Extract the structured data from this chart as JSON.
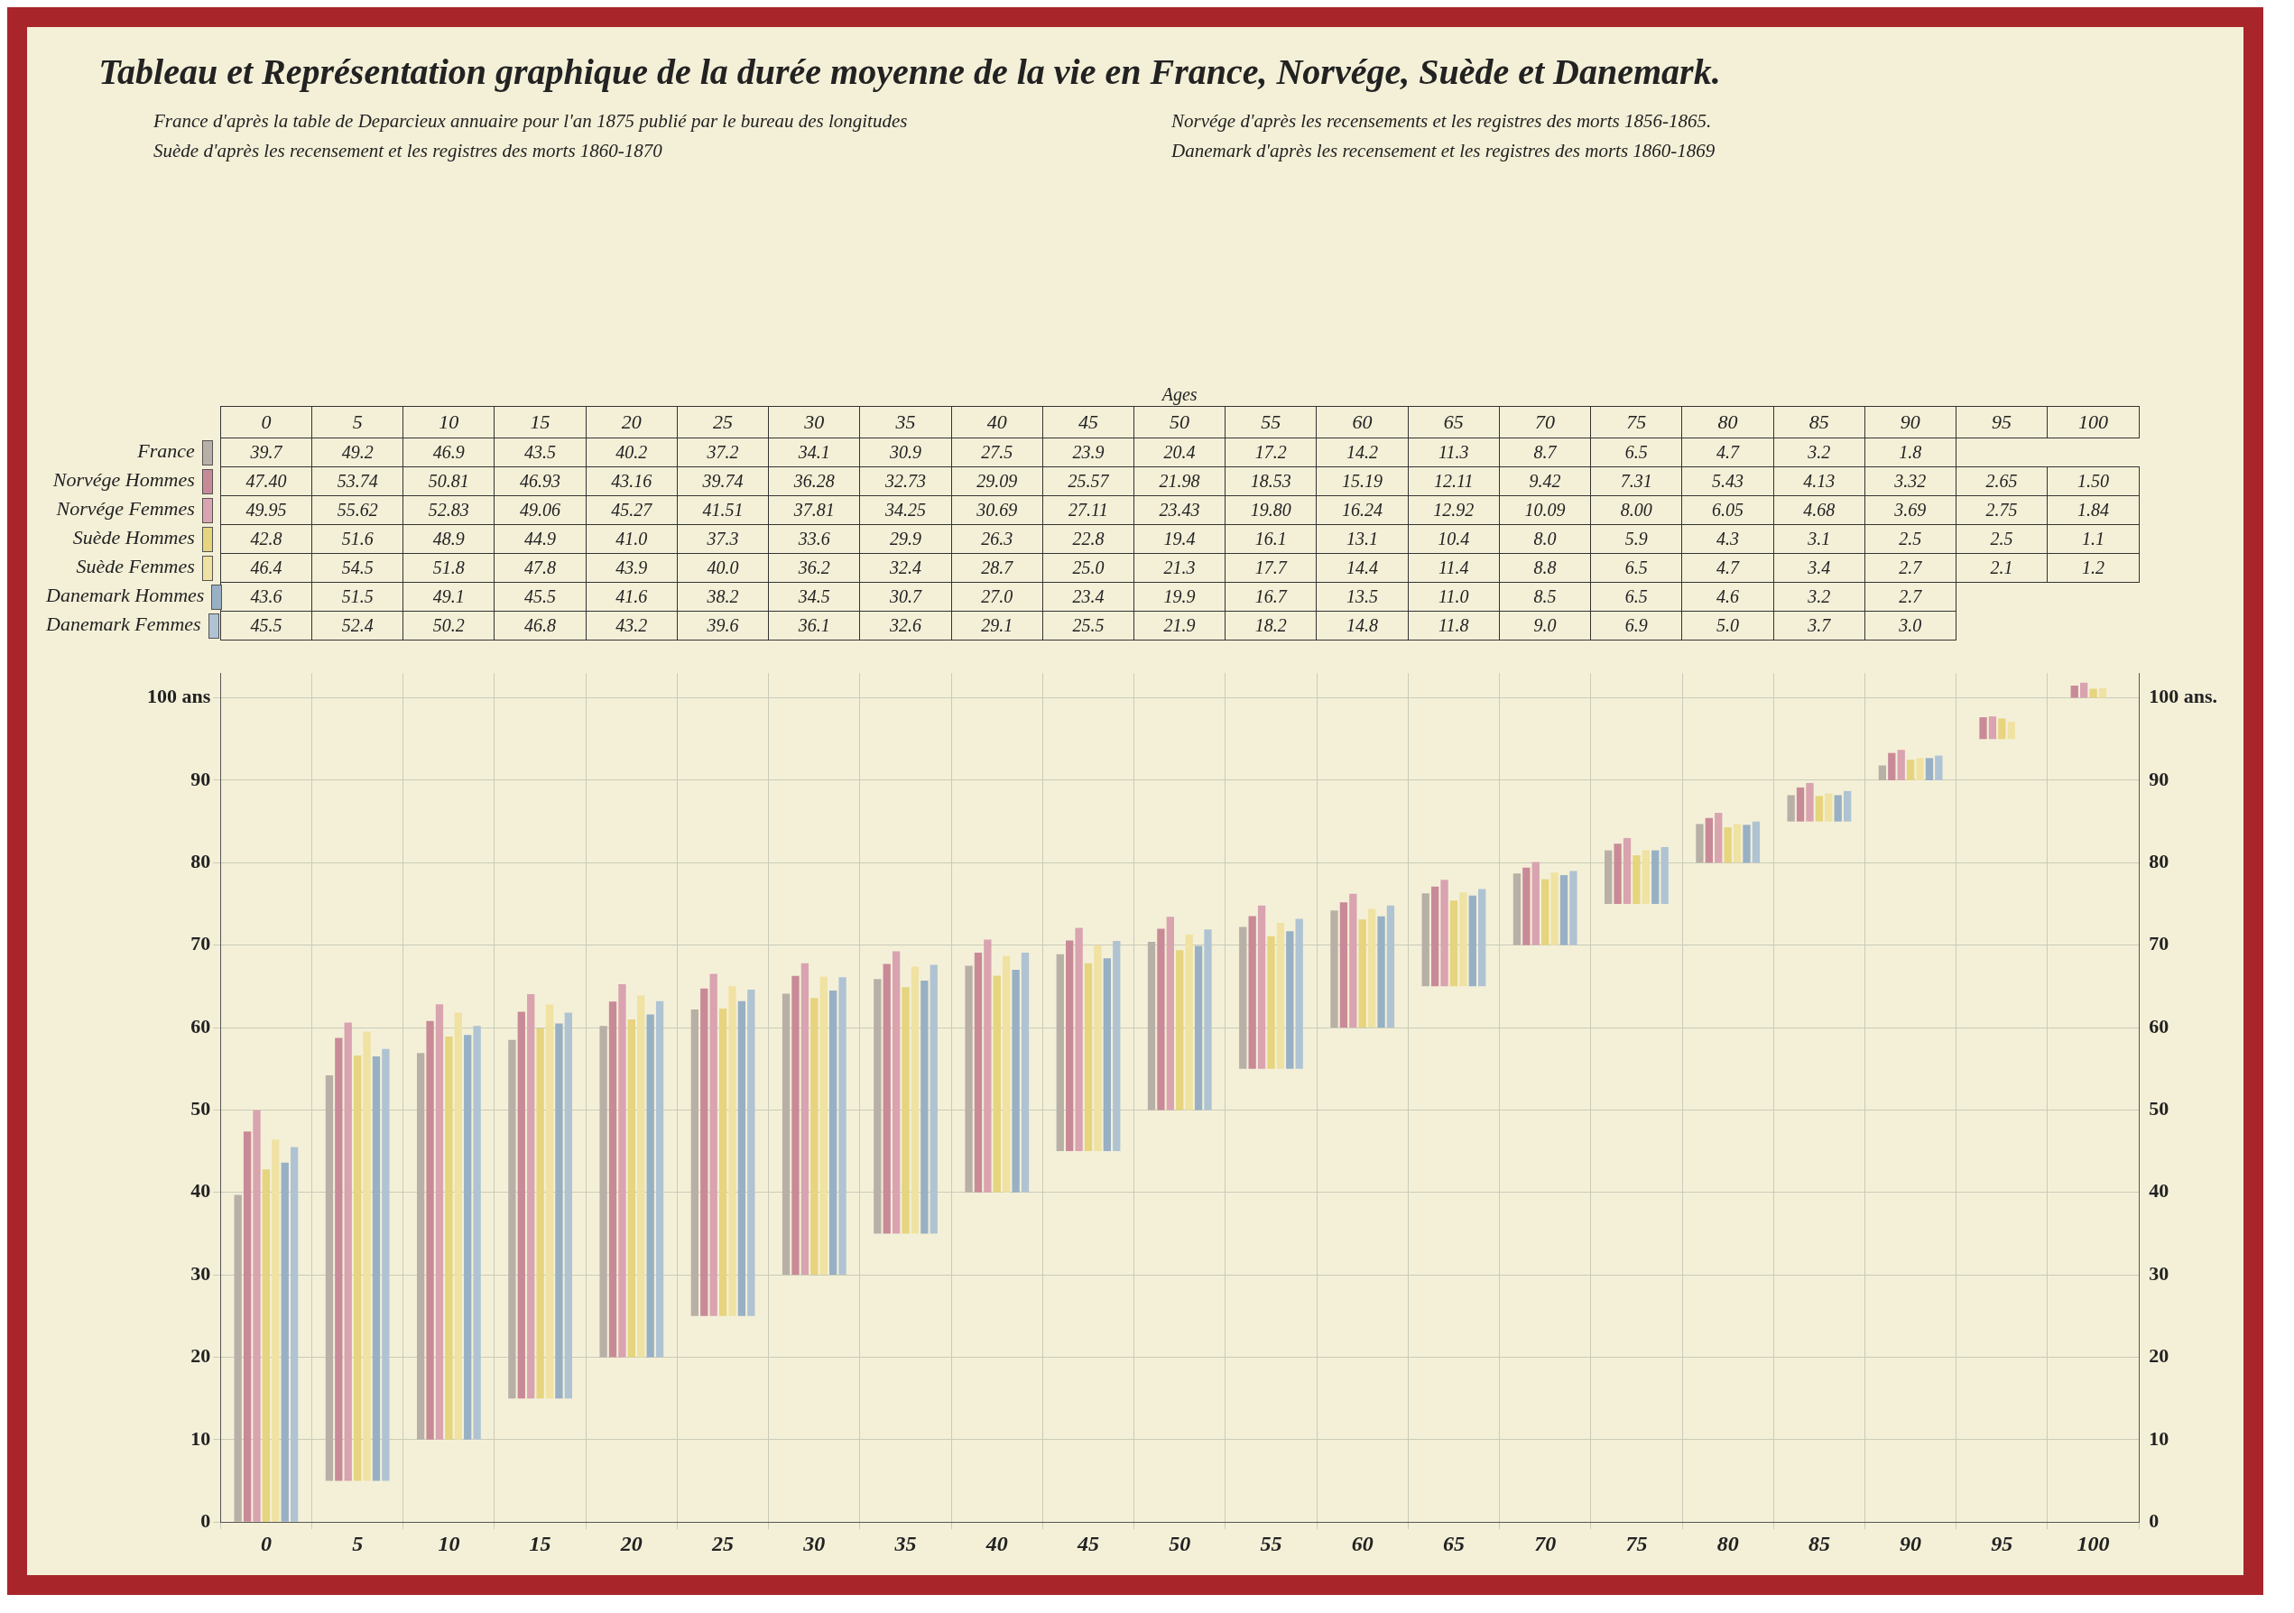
{
  "chart_data": {
    "type": "bar",
    "title": "Tableau et Représentation graphique de la durée moyenne de la vie en France, Norvége, Suède et Danemark.",
    "categories": [
      "0",
      "5",
      "10",
      "15",
      "20",
      "25",
      "30",
      "35",
      "40",
      "45",
      "50",
      "55",
      "60",
      "65",
      "70",
      "75",
      "80",
      "85",
      "90",
      "95",
      "100"
    ],
    "legend": "top",
    "series": [
      {
        "name": "France",
        "color": "#b8b0a6",
        "base": [
          0,
          5,
          10,
          15,
          20,
          25,
          30,
          35,
          40,
          45,
          50,
          55,
          60,
          65,
          70,
          75,
          80,
          85,
          90,
          null,
          null
        ],
        "values": [
          39.7,
          49.2,
          46.9,
          43.5,
          40.2,
          37.2,
          34.1,
          30.9,
          27.5,
          23.9,
          20.4,
          17.2,
          14.2,
          11.3,
          8.7,
          6.5,
          4.7,
          3.2,
          1.8,
          null,
          null
        ],
        "value_labels": [
          "39.7",
          "49.2",
          "46.9",
          "43.5",
          "40.2",
          "37.2",
          "34.1",
          "30.9",
          "27.5",
          "23.9",
          "20.4",
          "17.2",
          "14.2",
          "11.3",
          "8.7",
          "6.5",
          "4.7",
          "3.2",
          "1.8",
          null,
          null
        ]
      },
      {
        "name": "Norvége Hommes",
        "color": "#c98a98",
        "base": [
          0,
          5,
          10,
          15,
          20,
          25,
          30,
          35,
          40,
          45,
          50,
          55,
          60,
          65,
          70,
          75,
          80,
          85,
          90,
          95,
          100
        ],
        "values": [
          47.4,
          53.74,
          50.81,
          46.93,
          43.16,
          39.74,
          36.28,
          32.73,
          29.09,
          25.57,
          21.98,
          18.53,
          15.19,
          12.11,
          9.42,
          7.31,
          5.43,
          4.13,
          3.32,
          2.65,
          1.5
        ],
        "value_labels": [
          "47.40",
          "53.74",
          "50.81",
          "46.93",
          "43.16",
          "39.74",
          "36.28",
          "32.73",
          "29.09",
          "25.57",
          "21.98",
          "18.53",
          "15.19",
          "12.11",
          "9.42",
          "7.31",
          "5.43",
          "4.13",
          "3.32",
          "2.65",
          "1.50"
        ]
      },
      {
        "name": "Norvége Femmes",
        "color": "#d9a3b0",
        "base": [
          0,
          5,
          10,
          15,
          20,
          25,
          30,
          35,
          40,
          45,
          50,
          55,
          60,
          65,
          70,
          75,
          80,
          85,
          90,
          95,
          100
        ],
        "values": [
          49.95,
          55.62,
          52.83,
          49.06,
          45.27,
          41.51,
          37.81,
          34.25,
          30.69,
          27.11,
          23.43,
          19.8,
          16.24,
          12.92,
          10.09,
          8.0,
          6.05,
          4.68,
          3.69,
          2.75,
          1.84
        ],
        "value_labels": [
          "49.95",
          "55.62",
          "52.83",
          "49.06",
          "45.27",
          "41.51",
          "37.81",
          "34.25",
          "30.69",
          "27.11",
          "23.43",
          "19.80",
          "16.24",
          "12.92",
          "10.09",
          "8.00",
          "6.05",
          "4.68",
          "3.69",
          "2.75",
          "1.84"
        ]
      },
      {
        "name": "Suède Hommes",
        "color": "#e6d47e",
        "base": [
          0,
          5,
          10,
          15,
          20,
          25,
          30,
          35,
          40,
          45,
          50,
          55,
          60,
          65,
          70,
          75,
          80,
          85,
          90,
          95,
          100
        ],
        "values": [
          42.8,
          51.6,
          48.9,
          44.9,
          41.0,
          37.3,
          33.6,
          29.9,
          26.3,
          22.8,
          19.4,
          16.1,
          13.1,
          10.4,
          8.0,
          5.9,
          4.3,
          3.1,
          2.5,
          2.5,
          1.1
        ],
        "value_labels": [
          "42.8",
          "51.6",
          "48.9",
          "44.9",
          "41.0",
          "37.3",
          "33.6",
          "29.9",
          "26.3",
          "22.8",
          "19.4",
          "16.1",
          "13.1",
          "10.4",
          "8.0",
          "5.9",
          "4.3",
          "3.1",
          "2.5",
          "2.5",
          "1.1"
        ]
      },
      {
        "name": "Suède Femmes",
        "color": "#efe2a2",
        "base": [
          0,
          5,
          10,
          15,
          20,
          25,
          30,
          35,
          40,
          45,
          50,
          55,
          60,
          65,
          70,
          75,
          80,
          85,
          90,
          95,
          100
        ],
        "values": [
          46.4,
          54.5,
          51.8,
          47.8,
          43.9,
          40.0,
          36.2,
          32.4,
          28.7,
          25.0,
          21.3,
          17.7,
          14.4,
          11.4,
          8.8,
          6.5,
          4.7,
          3.4,
          2.7,
          2.1,
          1.2
        ],
        "value_labels": [
          "46.4",
          "54.5",
          "51.8",
          "47.8",
          "43.9",
          "40.0",
          "36.2",
          "32.4",
          "28.7",
          "25.0",
          "21.3",
          "17.7",
          "14.4",
          "11.4",
          "8.8",
          "6.5",
          "4.7",
          "3.4",
          "2.7",
          "2.1",
          "1.2"
        ]
      },
      {
        "name": "Danemark Hommes",
        "color": "#98b0c4",
        "base": [
          0,
          5,
          10,
          15,
          20,
          25,
          30,
          35,
          40,
          45,
          50,
          55,
          60,
          65,
          70,
          75,
          80,
          85,
          90,
          null,
          null
        ],
        "values": [
          43.6,
          51.5,
          49.1,
          45.5,
          41.6,
          38.2,
          34.5,
          30.7,
          27.0,
          23.4,
          19.9,
          16.7,
          13.5,
          11.0,
          8.5,
          6.5,
          4.6,
          3.2,
          2.7,
          null,
          null
        ],
        "value_labels": [
          "43.6",
          "51.5",
          "49.1",
          "45.5",
          "41.6",
          "38.2",
          "34.5",
          "30.7",
          "27.0",
          "23.4",
          "19.9",
          "16.7",
          "13.5",
          "11.0",
          "8.5",
          "6.5",
          "4.6",
          "3.2",
          "2.7",
          null,
          null
        ]
      },
      {
        "name": "Danemark Femmes",
        "color": "#afc3d3",
        "base": [
          0,
          5,
          10,
          15,
          20,
          25,
          30,
          35,
          40,
          45,
          50,
          55,
          60,
          65,
          70,
          75,
          80,
          85,
          90,
          null,
          null
        ],
        "values": [
          45.5,
          52.4,
          50.2,
          46.8,
          43.2,
          39.6,
          36.1,
          32.6,
          29.1,
          25.5,
          21.9,
          18.2,
          14.8,
          11.8,
          9.0,
          6.9,
          5.0,
          3.7,
          3.0,
          null,
          null
        ],
        "value_labels": [
          "45.5",
          "52.4",
          "50.2",
          "46.8",
          "43.2",
          "39.6",
          "36.1",
          "32.6",
          "29.1",
          "25.5",
          "21.9",
          "18.2",
          "14.8",
          "11.8",
          "9.0",
          "6.9",
          "5.0",
          "3.7",
          "3.0",
          null,
          null
        ]
      }
    ],
    "annotations": [
      "Ages",
      "France d'après la table de Deparcieux annuaire pour l'an 1875 publié par le bureau des longitudes",
      "Norvége d'après les recensements et les registres des morts 1856-1865.",
      "Suède d'après les recensement et les registres des morts 1860-1870",
      "Danemark d'après les recensement et les registres des morts 1860-1869"
    ],
    "ylim": [
      0,
      103
    ],
    "yticks": [
      0,
      10,
      20,
      30,
      40,
      50,
      60,
      70,
      80,
      90,
      {
        "value": 100,
        "label": "100 ans"
      }
    ],
    "y2lim": [
      0,
      103
    ],
    "y2ticks": [
      0,
      10,
      20,
      30,
      40,
      50,
      60,
      70,
      80,
      90,
      {
        "value": 100,
        "label": "100 ans."
      }
    ],
    "grid": true
  }
}
